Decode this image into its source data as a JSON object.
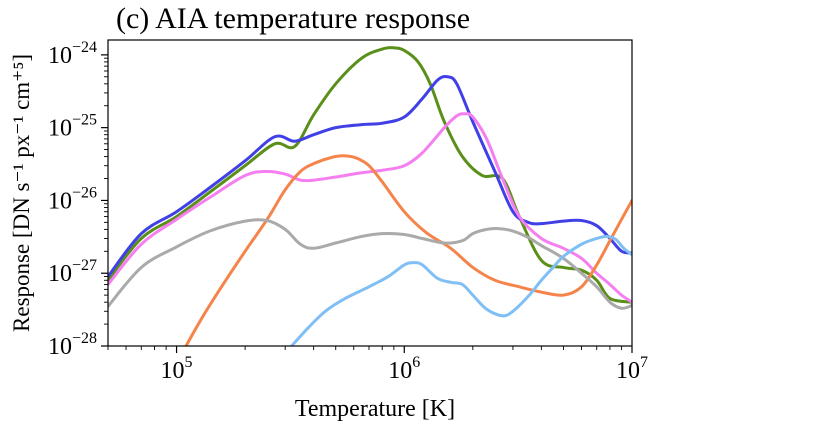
{
  "chart_data": {
    "type": "line",
    "title": "(c) AIA temperature response",
    "xlabel": "Temperature [K]",
    "ylabel": "Response [DN s⁻¹ px⁻¹ cm⁺⁵]",
    "xscale": "log",
    "yscale": "log",
    "xlim": [
      50000,
      10000000
    ],
    "ylim": [
      1e-28,
      1.6e-24
    ],
    "x_ticks": [
      {
        "value": 100000,
        "base": "10",
        "exp": "5"
      },
      {
        "value": 1000000,
        "base": "10",
        "exp": "6"
      },
      {
        "value": 10000000,
        "base": "10",
        "exp": "7"
      }
    ],
    "y_ticks": [
      {
        "value": 1e-28,
        "base": "10",
        "exp": "−28"
      },
      {
        "value": 1e-27,
        "base": "10",
        "exp": "−27"
      },
      {
        "value": 1e-26,
        "base": "10",
        "exp": "−26"
      },
      {
        "value": 1e-25,
        "base": "10",
        "exp": "−25"
      },
      {
        "value": 1e-24,
        "base": "10",
        "exp": "−24"
      }
    ],
    "grid": false,
    "series": [
      {
        "color": "#5a8f1a",
        "x": [
          50000,
          70000,
          100000,
          140000,
          200000,
          270000,
          330000,
          400000,
          500000,
          650000,
          800000,
          900000,
          1000000,
          1150000,
          1300000,
          1500000,
          1800000,
          2200000,
          2700000,
          3200000,
          4000000,
          5000000,
          6000000,
          7000000,
          8000000,
          10000000
        ],
        "y": [
          8e-28,
          3e-27,
          6e-27,
          1.3e-26,
          3e-26,
          6e-26,
          5.5e-26,
          1.5e-25,
          4e-25,
          9e-25,
          1.2e-24,
          1.25e-24,
          1.15e-24,
          8e-25,
          4e-25,
          1.2e-25,
          4e-26,
          2.2e-26,
          2e-26,
          6e-27,
          1.5e-27,
          1.2e-27,
          1.1e-27,
          8e-28,
          4.5e-28,
          4e-28
        ]
      },
      {
        "color": "#4040e6",
        "x": [
          50000,
          70000,
          100000,
          140000,
          200000,
          270000,
          330000,
          400000,
          500000,
          650000,
          800000,
          1000000,
          1200000,
          1400000,
          1550000,
          1700000,
          2000000,
          2500000,
          3000000,
          3500000,
          4000000,
          5000000,
          6000000,
          7000000,
          8000000,
          9000000,
          10000000
        ],
        "y": [
          9e-28,
          3.5e-27,
          7e-27,
          1.5e-26,
          3.5e-26,
          7.5e-26,
          6.5e-26,
          8e-26,
          1e-25,
          1.1e-25,
          1.15e-25,
          1.4e-25,
          2.5e-25,
          4.5e-25,
          5e-25,
          4e-25,
          1.2e-25,
          2.5e-26,
          7e-27,
          5e-27,
          4.8e-27,
          5.2e-27,
          5.3e-27,
          4.5e-27,
          3e-27,
          2e-27,
          1.9e-27
        ]
      },
      {
        "color": "#f57ff0",
        "x": [
          50000,
          70000,
          100000,
          140000,
          200000,
          250000,
          300000,
          350000,
          400000,
          500000,
          650000,
          800000,
          1000000,
          1200000,
          1500000,
          1700000,
          1850000,
          2000000,
          2300000,
          2700000,
          3200000,
          4000000,
          5000000,
          6000000,
          7000000,
          8000000,
          9000000,
          10000000
        ],
        "y": [
          7e-28,
          2.5e-27,
          5.5e-27,
          1.1e-26,
          2.2e-26,
          2.5e-26,
          2.3e-26,
          1.9e-26,
          1.9e-26,
          2.1e-26,
          2.4e-26,
          2.6e-26,
          3e-26,
          4.5e-26,
          1e-25,
          1.45e-25,
          1.55e-25,
          1.4e-25,
          7e-26,
          2e-26,
          6e-27,
          3e-27,
          2.2e-27,
          1.6e-27,
          1e-27,
          7e-28,
          5e-28,
          4e-28
        ]
      },
      {
        "color": "#f5844a",
        "x": [
          110000,
          130000,
          160000,
          200000,
          250000,
          300000,
          350000,
          400000,
          480000,
          550000,
          620000,
          700000,
          800000,
          1000000,
          1250000,
          1600000,
          2000000,
          2500000,
          3200000,
          4000000,
          5000000,
          6000000,
          7000000,
          8000000,
          9000000,
          10000000
        ],
        "y": [
          1e-28,
          2.5e-28,
          7e-28,
          2e-27,
          5.5e-27,
          1.4e-26,
          2.5e-26,
          3.2e-26,
          3.9e-26,
          4.1e-26,
          3.8e-26,
          3e-26,
          1.8e-26,
          7e-27,
          3.6e-27,
          2.2e-27,
          1.2e-27,
          8e-28,
          6.5e-28,
          5.5e-28,
          5e-28,
          6.5e-28,
          1.3e-27,
          2.8e-27,
          5.5e-27,
          1e-26
        ]
      },
      {
        "color": "#aaaaaa",
        "x": [
          50000,
          70000,
          100000,
          140000,
          200000,
          250000,
          300000,
          350000,
          400000,
          500000,
          650000,
          800000,
          1000000,
          1200000,
          1500000,
          1800000,
          2000000,
          2300000,
          2600000,
          3000000,
          3500000,
          4000000,
          5000000,
          6000000,
          7000000,
          8000000,
          9000000,
          10000000
        ],
        "y": [
          3.5e-28,
          1.2e-27,
          2.3e-27,
          3.8e-27,
          5.2e-27,
          5.3e-27,
          4e-27,
          2.5e-27,
          2.2e-27,
          2.6e-27,
          3.2e-27,
          3.5e-27,
          3.4e-27,
          3e-27,
          2.6e-27,
          2.8e-27,
          3.5e-27,
          4e-27,
          4.1e-27,
          3.8e-27,
          3.1e-27,
          2.4e-27,
          1.6e-27,
          1e-27,
          6.5e-28,
          4e-28,
          3.3e-28,
          3.6e-28
        ]
      },
      {
        "color": "#7fbff5",
        "x": [
          320000,
          380000,
          450000,
          550000,
          700000,
          850000,
          1000000,
          1100000,
          1200000,
          1400000,
          1600000,
          1800000,
          2000000,
          2300000,
          2700000,
          3000000,
          3500000,
          4000000,
          4500000,
          5000000,
          6000000,
          7000000,
          7800000,
          8500000,
          9200000,
          10000000
        ],
        "y": [
          1e-28,
          1.8e-28,
          3e-28,
          4.5e-28,
          6.5e-28,
          9e-28,
          1.3e-27,
          1.4e-27,
          1.3e-27,
          8.5e-28,
          7.5e-28,
          7e-28,
          5e-28,
          3.2e-28,
          2.6e-28,
          3e-28,
          4.8e-28,
          8e-28,
          1.2e-27,
          1.7e-27,
          2.5e-27,
          3e-27,
          3.2e-27,
          2.9e-27,
          2.2e-27,
          1.8e-27
        ]
      }
    ]
  }
}
